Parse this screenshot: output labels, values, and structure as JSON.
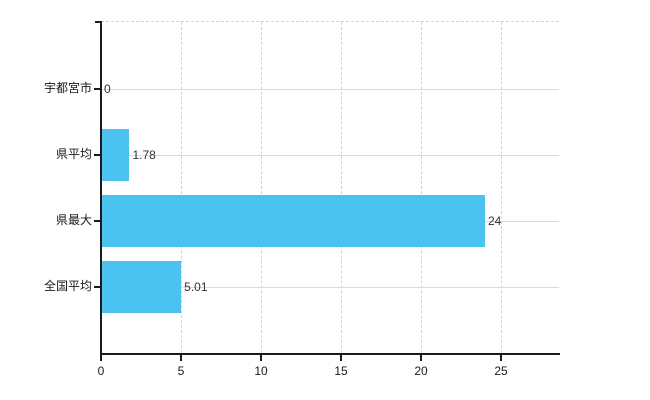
{
  "chart_data": {
    "type": "bar",
    "orientation": "horizontal",
    "title": "",
    "xlabel": "",
    "ylabel": "",
    "categories": [
      "宇都宮市",
      "県平均",
      "県最大",
      "全国平均"
    ],
    "values": [
      0,
      1.78,
      24,
      5.01
    ],
    "value_labels": [
      "0",
      "1.78",
      "24",
      "5.01"
    ],
    "x_ticks": [
      "0",
      "5",
      "10",
      "15",
      "20",
      "25"
    ],
    "x_tick_values": [
      0,
      5,
      10,
      15,
      20,
      25
    ],
    "xlim": [
      0,
      28.7
    ],
    "grid": "on",
    "legend": "none",
    "bar_color": "#4ac3f0",
    "colors": {
      "background": "#ffffff",
      "axis": "#1a1a1a",
      "grid_vertical": "#d6d2d6",
      "grid_horizontal": "#dbddd4",
      "tick_text": "#1a1a1a",
      "value_text": "#333333"
    }
  }
}
